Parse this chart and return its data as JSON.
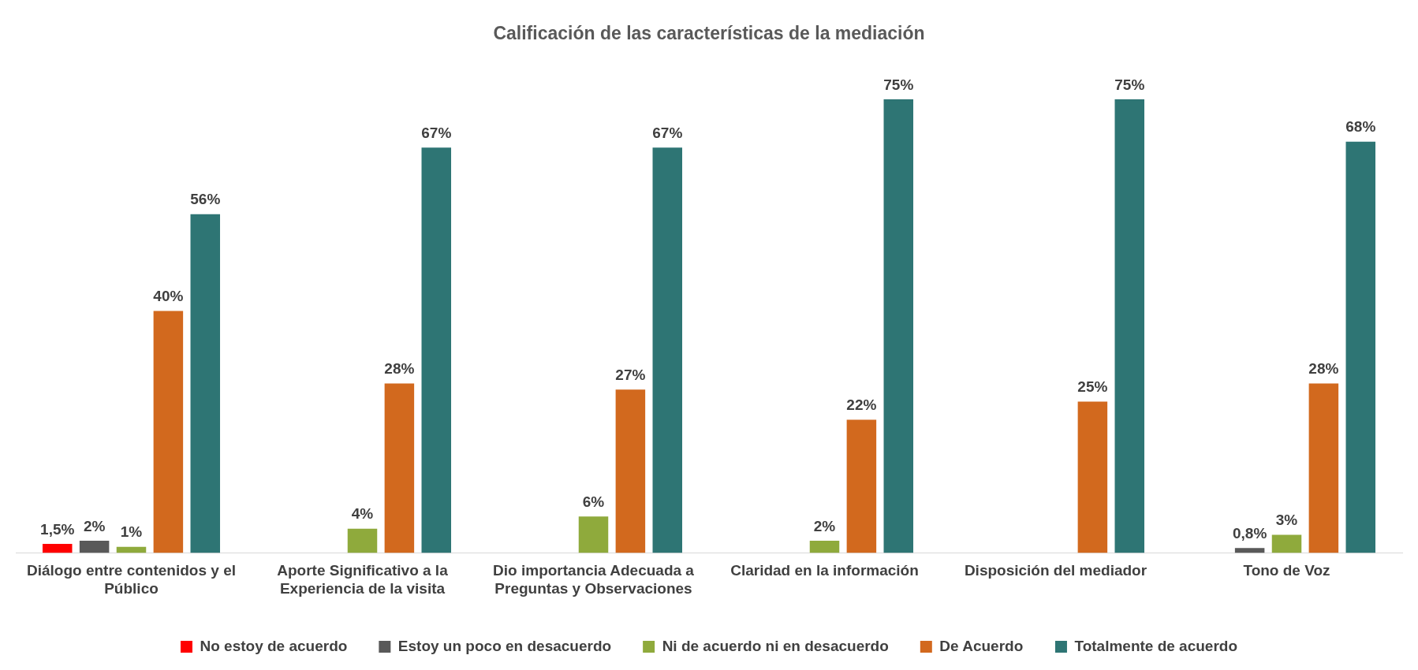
{
  "chart_data": {
    "type": "bar",
    "title": "Calificación de las características de la mediación",
    "categories": [
      "Diálogo entre contenidos y el Público",
      "Aporte Significativo a la Experiencia de la visita",
      "Dio importancia Adecuada a Preguntas y Observaciones",
      "Claridad en la información",
      "Disposición del mediador",
      "Tono de Voz"
    ],
    "series": [
      {
        "name": "No estoy de acuerdo",
        "color": "#ff0000",
        "values": [
          1.5,
          null,
          null,
          null,
          null,
          null
        ],
        "value_labels": [
          "1,5%",
          null,
          null,
          null,
          null,
          null
        ]
      },
      {
        "name": "Estoy un poco en desacuerdo",
        "color": "#595959",
        "values": [
          2,
          null,
          null,
          null,
          null,
          0.8
        ],
        "value_labels": [
          "2%",
          null,
          null,
          null,
          null,
          "0,8%"
        ]
      },
      {
        "name": "Ni de acuerdo ni en desacuerdo",
        "color": "#8faa3c",
        "values": [
          1,
          4,
          6,
          2,
          null,
          3
        ],
        "value_labels": [
          "1%",
          "4%",
          "6%",
          "2%",
          null,
          "3%"
        ]
      },
      {
        "name": "De Acuerdo",
        "color": "#d2691e",
        "values": [
          40,
          28,
          27,
          22,
          25,
          28
        ],
        "value_labels": [
          "40%",
          "28%",
          "27%",
          "22%",
          "25%",
          "28%"
        ]
      },
      {
        "name": "Totalmente de acuerdo",
        "color": "#2e7574",
        "values": [
          56,
          67,
          67,
          75,
          75,
          68
        ],
        "value_labels": [
          "56%",
          "67%",
          "67%",
          "75%",
          "75%",
          "68%"
        ]
      }
    ],
    "tick_labels": "x",
    "grid": false,
    "legend": "bottom"
  }
}
